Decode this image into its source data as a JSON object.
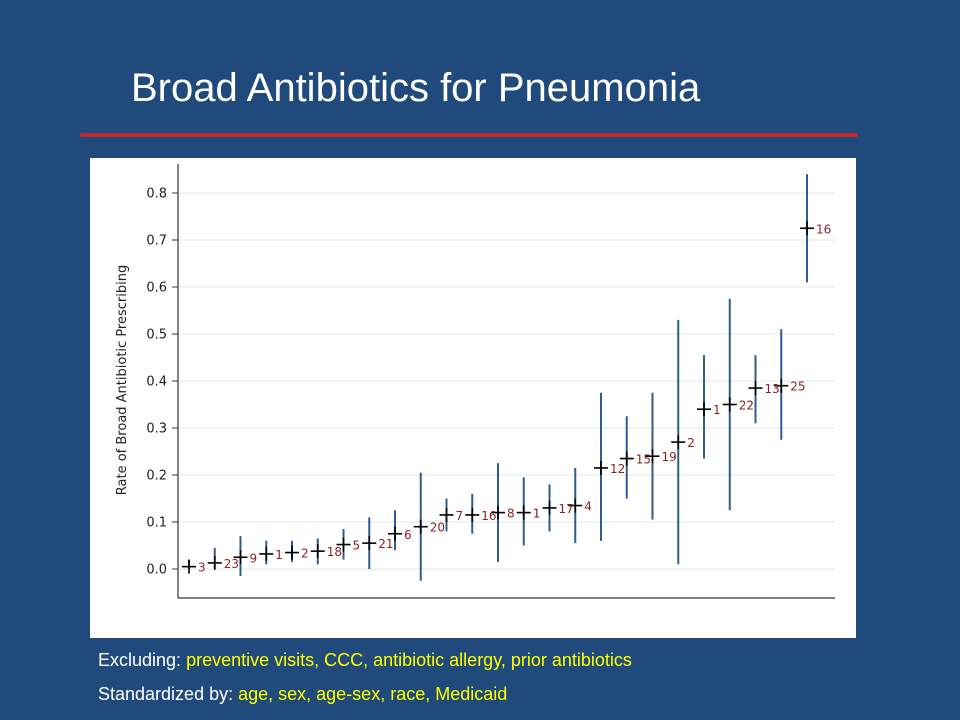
{
  "slide": {
    "title": "Broad Antibiotics for Pneumonia",
    "excluding_label": "Excluding:",
    "excluding_value": "preventive visits, CCC, antibiotic allergy, prior antibiotics",
    "standardized_label": "Standardized by:",
    "standardized_value": "age, sex, age-sex, race, Medicaid"
  },
  "colors": {
    "background": "#214a7c",
    "title_rule": "#c1272d",
    "error_bar": "#2f5d8c",
    "point_marker": "#000000",
    "point_label": "#8b2222",
    "footnote_value": "#ffff00"
  },
  "chart_data": {
    "type": "scatter",
    "ylabel": "Rate of Broad Antibiotic Prescribing",
    "xlabel": "",
    "ylim": [
      0,
      0.85
    ],
    "yticks": [
      "0.0",
      "0.1",
      "0.2",
      "0.3",
      "0.4",
      "0.5",
      "0.6",
      "0.7",
      "0.8"
    ],
    "grid": true,
    "legend": "none",
    "points": [
      {
        "label": "3",
        "rank": 1,
        "value": 0.005,
        "ci_low": 0.0,
        "ci_high": 0.02
      },
      {
        "label": "23",
        "rank": 2,
        "value": 0.013,
        "ci_low": 0.0,
        "ci_high": 0.045
      },
      {
        "label": "9",
        "rank": 3,
        "value": 0.025,
        "ci_low": -0.015,
        "ci_high": 0.07
      },
      {
        "label": "1",
        "rank": 4,
        "value": 0.032,
        "ci_low": 0.01,
        "ci_high": 0.06
      },
      {
        "label": "2",
        "rank": 5,
        "value": 0.035,
        "ci_low": 0.015,
        "ci_high": 0.06
      },
      {
        "label": "18",
        "rank": 6,
        "value": 0.038,
        "ci_low": 0.01,
        "ci_high": 0.065
      },
      {
        "label": "5",
        "rank": 7,
        "value": 0.052,
        "ci_low": 0.02,
        "ci_high": 0.085
      },
      {
        "label": "21",
        "rank": 8,
        "value": 0.055,
        "ci_low": 0.0,
        "ci_high": 0.11
      },
      {
        "label": "6",
        "rank": 9,
        "value": 0.075,
        "ci_low": 0.04,
        "ci_high": 0.125
      },
      {
        "label": "20",
        "rank": 10,
        "value": 0.09,
        "ci_low": -0.025,
        "ci_high": 0.205
      },
      {
        "label": "7",
        "rank": 11,
        "value": 0.115,
        "ci_low": 0.08,
        "ci_high": 0.15
      },
      {
        "label": "16",
        "rank": 12,
        "value": 0.115,
        "ci_low": 0.075,
        "ci_high": 0.16
      },
      {
        "label": "8",
        "rank": 13,
        "value": 0.12,
        "ci_low": 0.015,
        "ci_high": 0.225
      },
      {
        "label": "1",
        "rank": 14,
        "value": 0.12,
        "ci_low": 0.05,
        "ci_high": 0.195
      },
      {
        "label": "17",
        "rank": 15,
        "value": 0.13,
        "ci_low": 0.08,
        "ci_high": 0.18
      },
      {
        "label": "4",
        "rank": 16,
        "value": 0.135,
        "ci_low": 0.055,
        "ci_high": 0.215
      },
      {
        "label": "12",
        "rank": 17,
        "value": 0.215,
        "ci_low": 0.06,
        "ci_high": 0.375
      },
      {
        "label": "15",
        "rank": 18,
        "value": 0.235,
        "ci_low": 0.15,
        "ci_high": 0.325
      },
      {
        "label": "19",
        "rank": 19,
        "value": 0.24,
        "ci_low": 0.105,
        "ci_high": 0.375
      },
      {
        "label": "2",
        "rank": 20,
        "value": 0.27,
        "ci_low": 0.01,
        "ci_high": 0.53
      },
      {
        "label": "1",
        "rank": 21,
        "value": 0.34,
        "ci_low": 0.235,
        "ci_high": 0.455
      },
      {
        "label": "22",
        "rank": 22,
        "value": 0.35,
        "ci_low": 0.125,
        "ci_high": 0.575
      },
      {
        "label": "13",
        "rank": 23,
        "value": 0.385,
        "ci_low": 0.31,
        "ci_high": 0.455
      },
      {
        "label": "25",
        "rank": 24,
        "value": 0.39,
        "ci_low": 0.275,
        "ci_high": 0.51
      },
      {
        "label": "16",
        "rank": 25,
        "value": 0.725,
        "ci_low": 0.61,
        "ci_high": 0.84
      }
    ]
  }
}
